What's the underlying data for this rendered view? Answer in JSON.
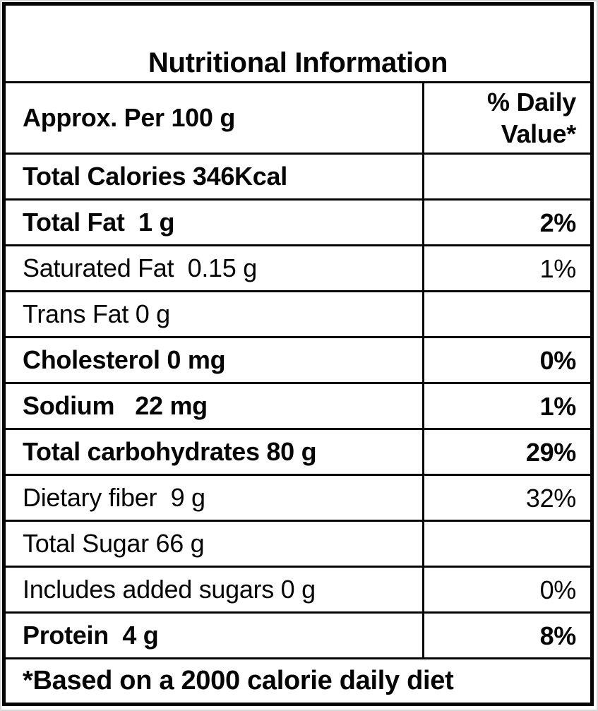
{
  "colors": {
    "background": "#ffffff",
    "border": "#050505",
    "text": "#050505"
  },
  "title": "Nutritional Information",
  "columns": {
    "serving": "Approx. Per 100 g",
    "daily_value": "% Daily Value*"
  },
  "rows": [
    {
      "label": "Total Calories 346Kcal",
      "value": "",
      "emphasis": true
    },
    {
      "label": "Total Fat  1 g",
      "value": "2%",
      "emphasis": true
    },
    {
      "label": "Saturated Fat  0.15 g",
      "value": "1%",
      "emphasis": false
    },
    {
      "label": "Trans Fat 0 g",
      "value": "",
      "emphasis": false
    },
    {
      "label": "Cholesterol 0 mg",
      "value": "0%",
      "emphasis": true
    },
    {
      "label": "Sodium   22 mg",
      "value": "1%",
      "emphasis": true
    },
    {
      "label": "Total carbohydrates 80 g",
      "value": "29%",
      "emphasis": true
    },
    {
      "label": "Dietary fiber  9 g",
      "value": "32%",
      "emphasis": false
    },
    {
      "label": "Total Sugar 66 g",
      "value": "",
      "emphasis": false
    },
    {
      "label": "Includes added sugars 0 g",
      "value": "0%",
      "emphasis": false
    },
    {
      "label": "Protein  4 g",
      "value": "8%",
      "emphasis": true
    }
  ],
  "footnote": "*Based on a 2000 calorie daily diet"
}
